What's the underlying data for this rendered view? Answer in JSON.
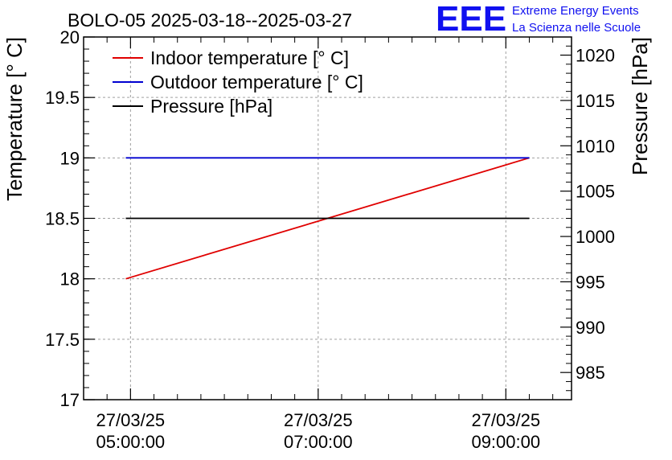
{
  "colors": {
    "indoor": "#e00000",
    "outdoor": "#0000d0",
    "pressure": "#000000",
    "brand": "#1010f0",
    "grid": "#a0a0a0"
  },
  "header": {
    "title": "BOLO-05 2025-03-18--2025-03-27",
    "logo": "EEE",
    "brand_line1": "Extreme Energy Events",
    "brand_line2": "La Scienza nelle Scuole"
  },
  "chart_data": {
    "type": "line",
    "title": "BOLO-05 2025-03-18--2025-03-27",
    "xlabel": "",
    "ylabel": "Temperature [° C]",
    "y2label": "Pressure [hPa]",
    "x_hours": [
      4.95,
      9.25
    ],
    "xlim_hours": [
      4.5,
      9.7
    ],
    "x_ticks": [
      {
        "hour": 5,
        "date": "27/03/25",
        "time": "05:00:00"
      },
      {
        "hour": 7,
        "date": "27/03/25",
        "time": "07:00:00"
      },
      {
        "hour": 9,
        "date": "27/03/25",
        "time": "09:00:00"
      }
    ],
    "ylim": [
      17,
      20
    ],
    "y_ticks": [
      "17",
      "17.5",
      "18",
      "18.5",
      "19",
      "19.5",
      "20"
    ],
    "y_tick_values": [
      17,
      17.5,
      18,
      18.5,
      19,
      19.5,
      20
    ],
    "y2lim": [
      982,
      1022
    ],
    "y2_ticks": [
      "985",
      "990",
      "995",
      "1000",
      "1005",
      "1010",
      "1015",
      "1020"
    ],
    "y2_tick_values": [
      985,
      990,
      995,
      1000,
      1005,
      1010,
      1015,
      1020
    ],
    "grid": true,
    "legend_position": "top-left",
    "series": [
      {
        "name": "Indoor temperature [° C]",
        "axis": "left",
        "values": [
          18.0,
          19.0
        ]
      },
      {
        "name": "Outdoor temperature [° C]",
        "axis": "left",
        "values": [
          19.0,
          19.0
        ]
      },
      {
        "name": "Pressure [hPa]",
        "axis": "right",
        "values": [
          1002.0,
          1002.0
        ]
      }
    ]
  }
}
